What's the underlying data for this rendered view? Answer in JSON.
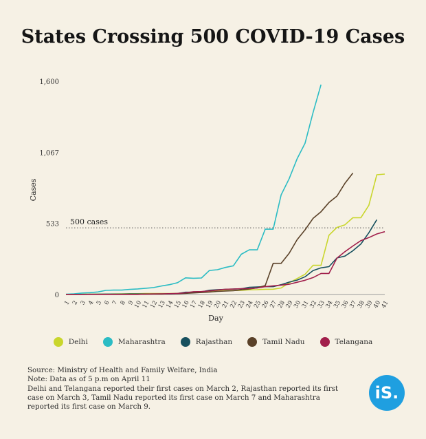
{
  "title": "States Crossing 500 COVID-19 Cases",
  "logo_text": "iS.",
  "footer": {
    "source": "Source: Ministry of Health and Family Welfare, India",
    "note": "Note: Data as of 5 p.m on April 11",
    "detail": "Delhi and Telangana reported their first cases on March 2, Rajasthan reported its first case on March 3, Tamil Nadu reported its first case on March 7 and Maharashtra reported its first case on March 9."
  },
  "chart_data": {
    "type": "line",
    "title": "States Crossing 500 COVID-19 Cases",
    "xlabel": "Day",
    "ylabel": "Cases",
    "x": [
      1,
      2,
      3,
      4,
      5,
      6,
      7,
      8,
      9,
      10,
      11,
      12,
      13,
      14,
      15,
      16,
      17,
      18,
      19,
      20,
      21,
      22,
      23,
      24,
      25,
      26,
      27,
      28,
      29,
      30,
      31,
      32,
      33,
      34,
      35,
      36,
      37,
      38,
      39,
      40,
      41
    ],
    "xlim": [
      1,
      41
    ],
    "ylim": [
      0,
      1600
    ],
    "yticks": [
      0,
      533,
      1067,
      1600
    ],
    "ytick_labels": [
      "0",
      "533",
      "1,067",
      "1,600"
    ],
    "grid": false,
    "legend_position": "bottom",
    "reference_line": {
      "value": 500,
      "label": "500 cases",
      "color": "#555555"
    },
    "series": [
      {
        "name": "Delhi",
        "color": "#c9d62c",
        "values": [
          1,
          1,
          2,
          2,
          3,
          3,
          4,
          5,
          6,
          6,
          7,
          7,
          7,
          7,
          9,
          12,
          14,
          17,
          22,
          26,
          29,
          30,
          31,
          35,
          36,
          39,
          40,
          49,
          87,
          120,
          152,
          219,
          219,
          445,
          503,
          523,
          576,
          576,
          669,
          898,
          903
        ]
      },
      {
        "name": "Maharashtra",
        "color": "#2bbcc4",
        "values": [
          2,
          5,
          11,
          14,
          19,
          31,
          33,
          33,
          38,
          42,
          47,
          52,
          64,
          74,
          89,
          125,
          122,
          124,
          180,
          186,
          203,
          215,
          302,
          335,
          335,
          490,
          490,
          748,
          868,
          1018,
          1135,
          1364,
          1574,
          null,
          null,
          null,
          null,
          null,
          null,
          null,
          null
        ]
      },
      {
        "name": "Rajasthan",
        "color": "#17505e",
        "values": [
          1,
          1,
          1,
          2,
          2,
          3,
          3,
          3,
          4,
          4,
          4,
          4,
          4,
          4,
          7,
          17,
          17,
          20,
          32,
          36,
          38,
          41,
          43,
          54,
          57,
          59,
          59,
          74,
          93,
          108,
          133,
          179,
          200,
          209,
          274,
          288,
          328,
          379,
          463,
          561,
          null
        ]
      },
      {
        "name": "Tamil Nadu",
        "color": "#5a4128",
        "values": [
          1,
          1,
          1,
          1,
          1,
          1,
          1,
          1,
          1,
          1,
          2,
          3,
          3,
          6,
          6,
          9,
          12,
          15,
          18,
          23,
          26,
          29,
          35,
          42,
          50,
          67,
          234,
          234,
          309,
          411,
          485,
          571,
          621,
          690,
          738,
          834,
          911,
          null,
          null,
          null,
          null
        ]
      },
      {
        "name": "Telangana",
        "color": "#a11f4b",
        "values": [
          1,
          1,
          1,
          1,
          1,
          1,
          1,
          1,
          1,
          1,
          3,
          4,
          5,
          6,
          8,
          13,
          21,
          22,
          27,
          33,
          39,
          41,
          44,
          45,
          49,
          59,
          65,
          70,
          77,
          92,
          107,
          127,
          158,
          158,
          273,
          321,
          364,
          404,
          427,
          454,
          471
        ]
      }
    ]
  }
}
